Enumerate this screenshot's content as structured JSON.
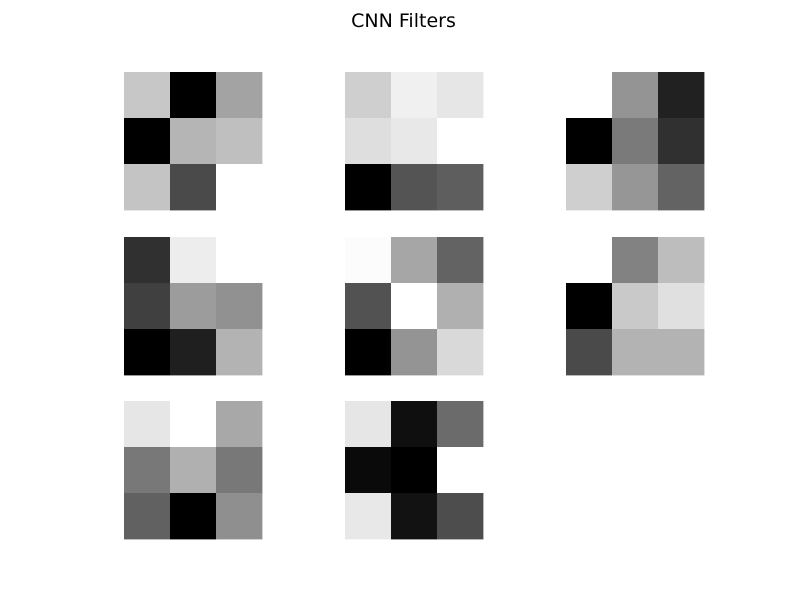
{
  "chart_data": {
    "type": "heatmap",
    "title": "CNN Filters",
    "colormap": "grayscale",
    "axes_visible": false,
    "grid": false,
    "layout": {
      "rows": 3,
      "cols": 3
    },
    "filters": [
      {
        "name": "",
        "values": [
          [
            0.78,
            0.0,
            0.64
          ],
          [
            0.0,
            0.71,
            0.75
          ],
          [
            0.77,
            0.29,
            1.0
          ]
        ]
      },
      {
        "name": "",
        "values": [
          [
            0.81,
            0.94,
            0.9
          ],
          [
            0.87,
            0.91,
            1.0
          ],
          [
            0.0,
            0.33,
            0.37
          ]
        ]
      },
      {
        "name": "",
        "values": [
          [
            1.0,
            0.58,
            0.13
          ],
          [
            0.0,
            0.48,
            0.19
          ],
          [
            0.81,
            0.59,
            0.39
          ]
        ]
      },
      {
        "name": "",
        "values": [
          [
            0.19,
            0.93,
            1.0
          ],
          [
            0.25,
            0.61,
            0.57
          ],
          [
            0.0,
            0.12,
            0.7
          ]
        ]
      },
      {
        "name": "",
        "values": [
          [
            0.99,
            0.65,
            0.39
          ],
          [
            0.32,
            1.0,
            0.69
          ],
          [
            0.0,
            0.58,
            0.85
          ]
        ]
      },
      {
        "name": "",
        "values": [
          [
            1.0,
            0.51,
            0.74
          ],
          [
            0.0,
            0.79,
            0.88
          ],
          [
            0.29,
            0.7,
            0.7
          ]
        ]
      },
      {
        "name": "",
        "values": [
          [
            0.9,
            1.0,
            0.66
          ],
          [
            0.47,
            0.69,
            0.47
          ],
          [
            0.38,
            0.0,
            0.56
          ]
        ]
      },
      {
        "name": "",
        "values": [
          [
            0.9,
            0.06,
            0.42
          ],
          [
            0.04,
            0.0,
            1.0
          ],
          [
            0.91,
            0.07,
            0.3
          ]
        ]
      }
    ]
  }
}
